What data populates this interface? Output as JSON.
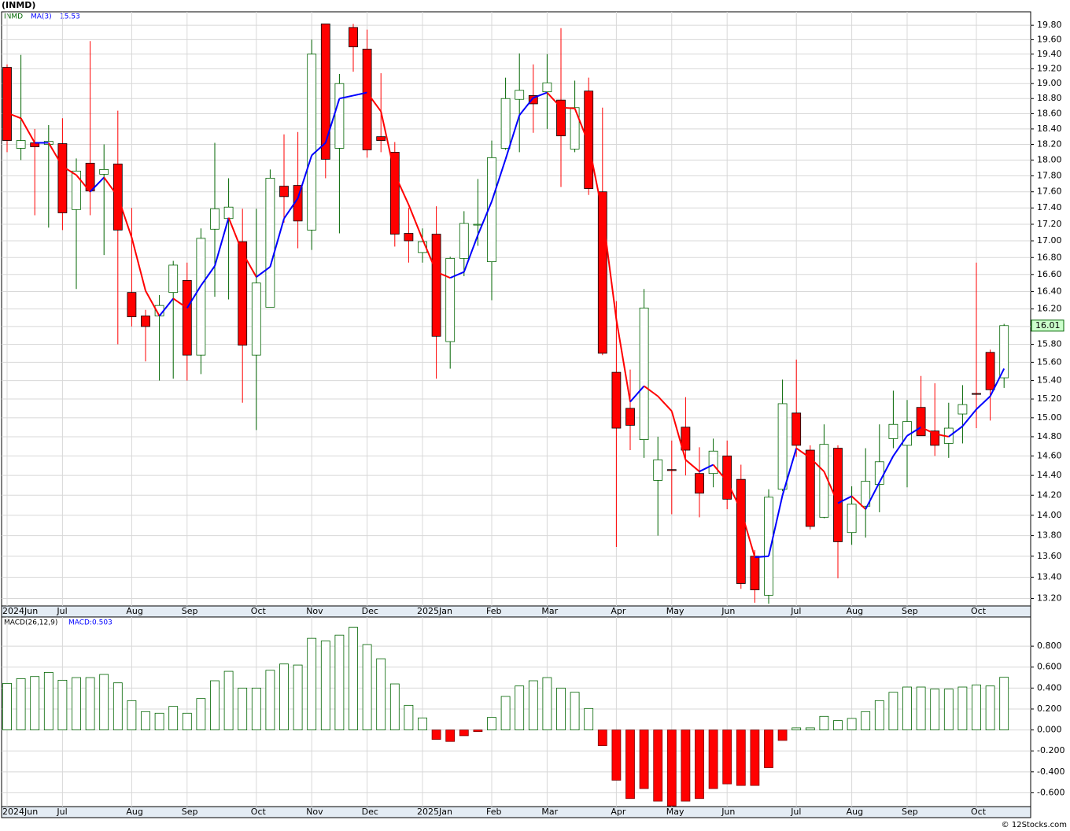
{
  "chart_data": [
    {
      "type": "candlestick",
      "title": "(INMD)",
      "ticker": "INMD",
      "categories": [
        "2024Jun",
        null,
        null,
        null,
        "Jul",
        null,
        null,
        null,
        null,
        "Aug",
        null,
        null,
        null,
        "Sep",
        null,
        null,
        null,
        null,
        "Oct",
        null,
        null,
        null,
        "Nov",
        null,
        null,
        null,
        "Dec",
        null,
        null,
        null,
        "2025Jan",
        null,
        null,
        null,
        null,
        "Feb",
        null,
        null,
        null,
        "Mar",
        null,
        null,
        null,
        null,
        "Apr",
        null,
        null,
        null,
        "May",
        null,
        null,
        null,
        "Jun",
        null,
        null,
        null,
        null,
        "Jul",
        null,
        null,
        null,
        "Aug",
        null,
        null,
        null,
        "Sep",
        null,
        null,
        null,
        null,
        "Oct",
        null,
        null
      ],
      "open": [
        19.22,
        18.15,
        18.22,
        18.2,
        18.21,
        17.38,
        17.96,
        17.82,
        17.95,
        16.39,
        16.12,
        16.12,
        16.39,
        16.53,
        15.68,
        17.14,
        17.27,
        16.99,
        15.68,
        16.22,
        17.67,
        17.68,
        17.13,
        19.82,
        18.15,
        19.77,
        19.47,
        18.3,
        18.1,
        17.09,
        16.86,
        17.08,
        15.83,
        16.79,
        17.19,
        16.75,
        18.15,
        18.79,
        18.84,
        18.89,
        18.78,
        18.14,
        18.9,
        17.6,
        15.49,
        15.1,
        14.77,
        14.35,
        14.46,
        14.9,
        14.42,
        14.42,
        14.6,
        14.36,
        13.6,
        13.23,
        14.26,
        15.05,
        14.66,
        13.98,
        14.68,
        13.83,
        14.09,
        14.31,
        14.78,
        14.71,
        15.11,
        14.86,
        14.73,
        15.04,
        15.26,
        15.71,
        15.43
      ],
      "high": [
        19.26,
        19.39,
        18.4,
        18.45,
        18.54,
        18.02,
        19.58,
        18.2,
        18.64,
        17.4,
        16.19,
        16.36,
        16.76,
        16.74,
        17.15,
        18.22,
        17.77,
        17.39,
        17.39,
        17.88,
        18.33,
        18.36,
        19.6,
        19.82,
        19.13,
        19.82,
        19.74,
        19.14,
        18.23,
        17.4,
        17.15,
        17.42,
        16.81,
        17.36,
        17.76,
        18.25,
        19.08,
        19.41,
        19.26,
        19.4,
        19.76,
        19.04,
        19.08,
        18.68,
        16.29,
        15.52,
        16.43,
        14.8,
        14.76,
        15.22,
        14.69,
        14.78,
        14.76,
        14.51,
        13.66,
        14.26,
        15.41,
        15.63,
        14.71,
        14.93,
        14.71,
        14.29,
        14.68,
        14.93,
        15.29,
        15.19,
        15.45,
        15.37,
        15.16,
        15.35,
        16.74,
        15.74,
        16.03
      ],
      "low": [
        18.1,
        18.0,
        17.31,
        17.16,
        17.13,
        16.43,
        17.31,
        16.83,
        15.8,
        16.0,
        15.61,
        15.4,
        15.42,
        15.4,
        15.47,
        16.34,
        16.31,
        15.16,
        14.87,
        16.22,
        17.22,
        16.91,
        16.89,
        17.77,
        17.09,
        19.16,
        18.03,
        18.1,
        16.93,
        16.74,
        16.74,
        15.42,
        15.53,
        16.58,
        16.94,
        16.3,
        18.13,
        18.1,
        18.35,
        18.4,
        17.66,
        18.1,
        17.56,
        15.68,
        13.69,
        14.66,
        14.58,
        13.8,
        14.01,
        14.4,
        13.98,
        14.28,
        14.06,
        13.29,
        13.16,
        13.15,
        14.24,
        14.59,
        13.86,
        13.97,
        13.39,
        13.71,
        13.78,
        14.03,
        14.68,
        14.28,
        14.81,
        14.6,
        14.58,
        14.73,
        14.89,
        14.97,
        15.32
      ],
      "close": [
        18.25,
        18.25,
        18.17,
        18.24,
        17.34,
        17.86,
        17.61,
        17.88,
        17.13,
        16.11,
        16.0,
        16.24,
        16.71,
        15.68,
        17.03,
        17.39,
        17.41,
        15.79,
        16.5,
        17.77,
        17.54,
        17.24,
        19.4,
        18.01,
        19.0,
        19.5,
        18.13,
        18.25,
        17.08,
        17.0,
        16.99,
        15.89,
        16.79,
        17.21,
        17.2,
        18.03,
        18.8,
        18.91,
        18.73,
        19.01,
        18.31,
        18.68,
        17.64,
        15.7,
        14.89,
        14.92,
        16.21,
        14.56,
        14.45,
        14.66,
        14.22,
        14.65,
        14.16,
        13.34,
        13.28,
        14.18,
        15.15,
        14.71,
        13.89,
        14.72,
        13.74,
        14.11,
        14.34,
        14.54,
        14.93,
        14.96,
        14.81,
        14.71,
        14.89,
        15.14,
        15.25,
        15.3,
        16.01
      ],
      "up_color": "#006400",
      "down_color": "#ff0000",
      "series": [
        {
          "name": "MA(3)",
          "up_color": "#0000ff",
          "down_color": "#ff0000",
          "values": [
            18.61,
            18.54,
            18.22,
            18.22,
            17.92,
            17.81,
            17.6,
            17.78,
            17.54,
            17.04,
            16.41,
            16.12,
            16.32,
            16.21,
            16.47,
            16.7,
            17.28,
            16.86,
            16.57,
            16.69,
            17.27,
            17.52,
            18.06,
            18.22,
            18.8,
            18.84,
            18.88,
            18.63,
            17.82,
            17.44,
            17.02,
            16.63,
            16.56,
            16.63,
            17.07,
            17.48,
            18.01,
            18.58,
            18.81,
            18.88,
            18.68,
            18.67,
            18.21,
            17.34,
            16.08,
            15.17,
            15.34,
            15.23,
            15.07,
            14.56,
            14.44,
            14.51,
            14.34,
            14.05,
            13.59,
            13.6,
            14.2,
            14.68,
            14.58,
            14.44,
            14.12,
            14.19,
            14.06,
            14.33,
            14.6,
            14.81,
            14.9,
            14.83,
            14.8,
            14.91,
            15.09,
            15.23,
            15.53
          ]
        }
      ],
      "log": true,
      "grid": true,
      "ylim": [
        13.13,
        19.99
      ],
      "yticks": [
        {
          "value": 13.2,
          "label": "13.20"
        },
        {
          "value": 13.4,
          "label": "13.40"
        },
        {
          "value": 13.6,
          "label": "13.60"
        },
        {
          "value": 13.8,
          "label": "13.80"
        },
        {
          "value": 14.0,
          "label": "14.00"
        },
        {
          "value": 14.2,
          "label": "14.20"
        },
        {
          "value": 14.4,
          "label": "14.40"
        },
        {
          "value": 14.6,
          "label": "14.60"
        },
        {
          "value": 14.8,
          "label": "14.80"
        },
        {
          "value": 15.0,
          "label": "15.00"
        },
        {
          "value": 15.2,
          "label": "15.20"
        },
        {
          "value": 15.4,
          "label": "15.40"
        },
        {
          "value": 15.6,
          "label": "15.60"
        },
        {
          "value": 15.8,
          "label": "15.80"
        },
        {
          "value": 16.0,
          "label": "16.00"
        },
        {
          "value": 16.2,
          "label": "16.20"
        },
        {
          "value": 16.4,
          "label": "16.40"
        },
        {
          "value": 16.6,
          "label": "16.60"
        },
        {
          "value": 16.8,
          "label": "16.80"
        },
        {
          "value": 17.0,
          "label": "17.00"
        },
        {
          "value": 17.2,
          "label": "17.20"
        },
        {
          "value": 17.4,
          "label": "17.40"
        },
        {
          "value": 17.6,
          "label": "17.60"
        },
        {
          "value": 17.8,
          "label": "17.80"
        },
        {
          "value": 18.0,
          "label": "18.00"
        },
        {
          "value": 18.2,
          "label": "18.20"
        },
        {
          "value": 18.4,
          "label": "18.40"
        },
        {
          "value": 18.6,
          "label": "18.60"
        },
        {
          "value": 18.8,
          "label": "18.80"
        },
        {
          "value": 19.0,
          "label": "19.00"
        },
        {
          "value": 19.2,
          "label": "19.20"
        },
        {
          "value": 19.4,
          "label": "19.40"
        },
        {
          "value": 19.6,
          "label": "19.60"
        },
        {
          "value": 19.8,
          "label": "19.80"
        }
      ],
      "price_tag_color": "#ccffcc",
      "credit": "© 12Stocks.com"
    },
    {
      "type": "bar",
      "title": "MACD(26,12,9)",
      "value_label": "MACD:0.503",
      "values": [
        0.445,
        0.49,
        0.51,
        0.55,
        0.475,
        0.5,
        0.5,
        0.53,
        0.45,
        0.28,
        0.175,
        0.16,
        0.225,
        0.16,
        0.3,
        0.47,
        0.56,
        0.4,
        0.4,
        0.57,
        0.63,
        0.62,
        0.875,
        0.85,
        0.905,
        0.98,
        0.815,
        0.68,
        0.44,
        0.235,
        0.115,
        -0.09,
        -0.11,
        -0.055,
        -0.015,
        0.12,
        0.32,
        0.42,
        0.47,
        0.5,
        0.4,
        0.36,
        0.205,
        -0.15,
        -0.48,
        -0.655,
        -0.56,
        -0.68,
        -0.725,
        -0.68,
        -0.655,
        -0.56,
        -0.515,
        -0.53,
        -0.53,
        -0.36,
        -0.1,
        0.02,
        0.02,
        0.13,
        0.09,
        0.11,
        0.175,
        0.28,
        0.36,
        0.41,
        0.41,
        0.39,
        0.39,
        0.41,
        0.43,
        0.42,
        0.503
      ],
      "up_color": "#006400",
      "down_color": "#ff0000",
      "grid": true,
      "ylim": [
        -0.732,
        1.079
      ],
      "yticks": [
        {
          "value": -0.6,
          "label": "-0.600"
        },
        {
          "value": -0.4,
          "label": "-0.400"
        },
        {
          "value": -0.2,
          "label": "-0.200"
        },
        {
          "value": 0,
          "label": "0.000"
        },
        {
          "value": 0.2,
          "label": "0.200"
        },
        {
          "value": 0.4,
          "label": "0.400"
        },
        {
          "value": 0.6,
          "label": "0.600"
        },
        {
          "value": 0.8,
          "label": "0.800"
        }
      ]
    }
  ]
}
